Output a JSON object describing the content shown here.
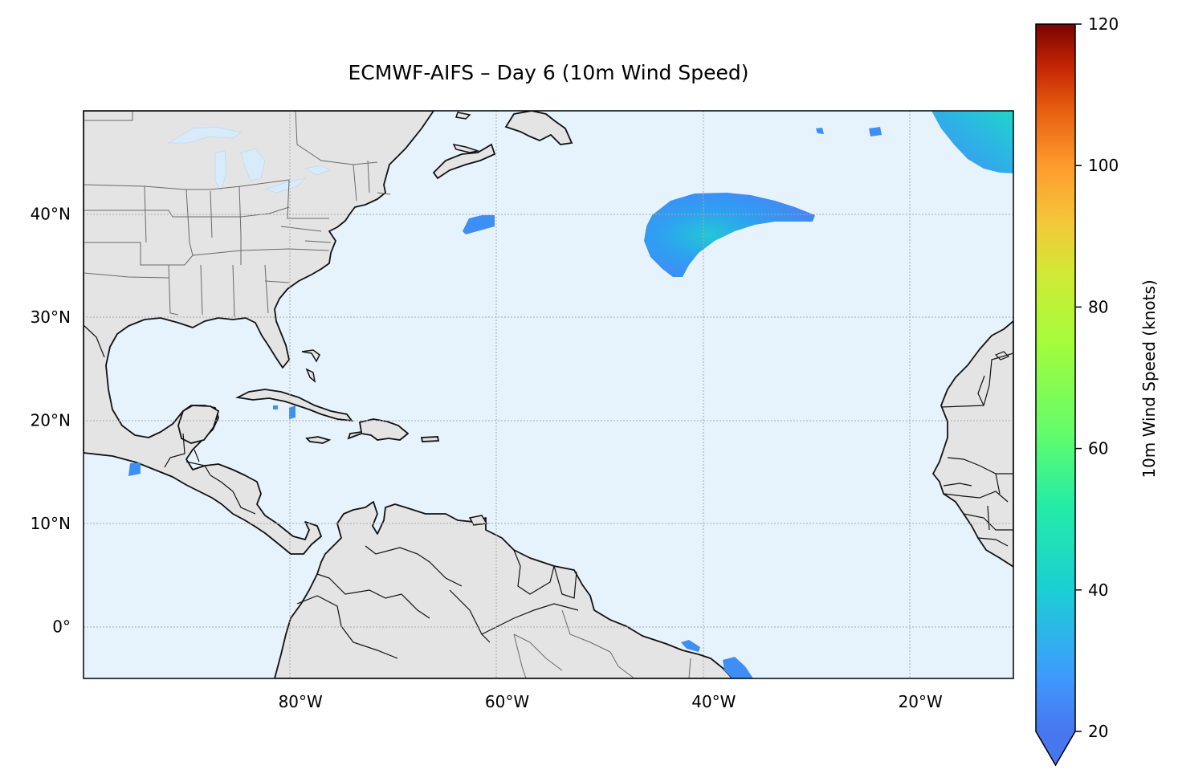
{
  "map": {
    "title": "ECMWF-AIFS – Day 6 (10m Wind Speed)",
    "region": "North Atlantic / Caribbean",
    "extent": {
      "lon_min": -101,
      "lon_max": -11,
      "lat_min": -5,
      "lat_max": 50
    },
    "xticks": [
      {
        "lon": -80,
        "label": "80°W"
      },
      {
        "lon": -60,
        "label": "60°W"
      },
      {
        "lon": -40,
        "label": "40°W"
      },
      {
        "lon": -20,
        "label": "20°W"
      }
    ],
    "yticks": [
      {
        "lat": 40,
        "label": "40°N"
      },
      {
        "lat": 30,
        "label": "30°N"
      },
      {
        "lat": 20,
        "label": "20°N"
      },
      {
        "lat": 10,
        "label": "10°N"
      },
      {
        "lat": 0,
        "label": "0°"
      }
    ],
    "gridlines": true,
    "colors": {
      "ocean": "#e6f3fc",
      "land": "#e4e4e4",
      "coast": "#111111",
      "borders": "#6a6a6a",
      "grid": "#aaaaaa"
    }
  },
  "colorbar": {
    "label": "10m Wind Speed (knots)",
    "min": 20,
    "max": 120,
    "extend": "min",
    "colormap": "turbo",
    "ticks": [
      "20",
      "40",
      "60",
      "80",
      "100",
      "120"
    ],
    "stops": [
      "#4777ef",
      "#1bcfd4",
      "#62fc6b",
      "#d2e935",
      "#fe9b2d",
      "#d93806",
      "#7a0403"
    ]
  }
}
